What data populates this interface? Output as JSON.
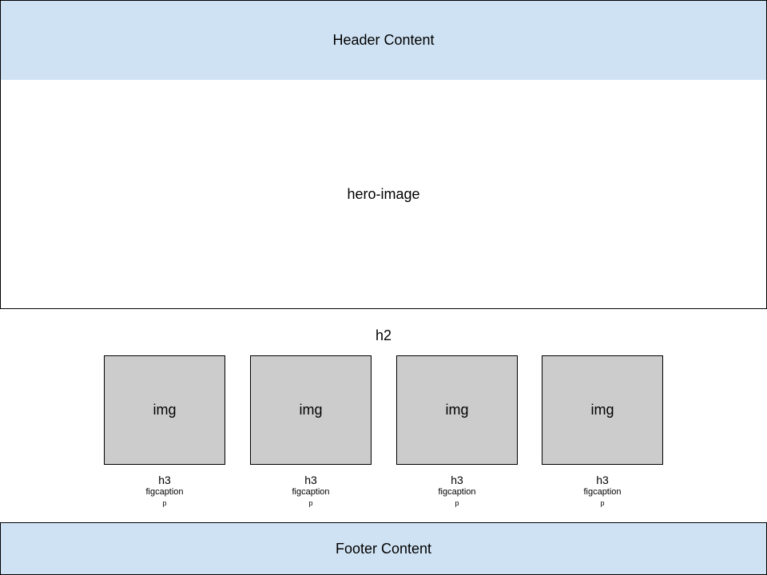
{
  "header": {
    "label": "Header Content"
  },
  "hero": {
    "label": "hero-image"
  },
  "section": {
    "heading": "h2"
  },
  "cards": [
    {
      "img": "img",
      "h3": "h3",
      "figcaption": "figcaption",
      "p": "p"
    },
    {
      "img": "img",
      "h3": "h3",
      "figcaption": "figcaption",
      "p": "p"
    },
    {
      "img": "img",
      "h3": "h3",
      "figcaption": "figcaption",
      "p": "p"
    },
    {
      "img": "img",
      "h3": "h3",
      "figcaption": "figcaption",
      "p": "p"
    }
  ],
  "footer": {
    "label": "Footer Content"
  },
  "colors": {
    "header_bg": "#cfe2f3",
    "footer_bg": "#cfe2f3",
    "placeholder_bg": "#cccccc",
    "border": "#000000"
  }
}
